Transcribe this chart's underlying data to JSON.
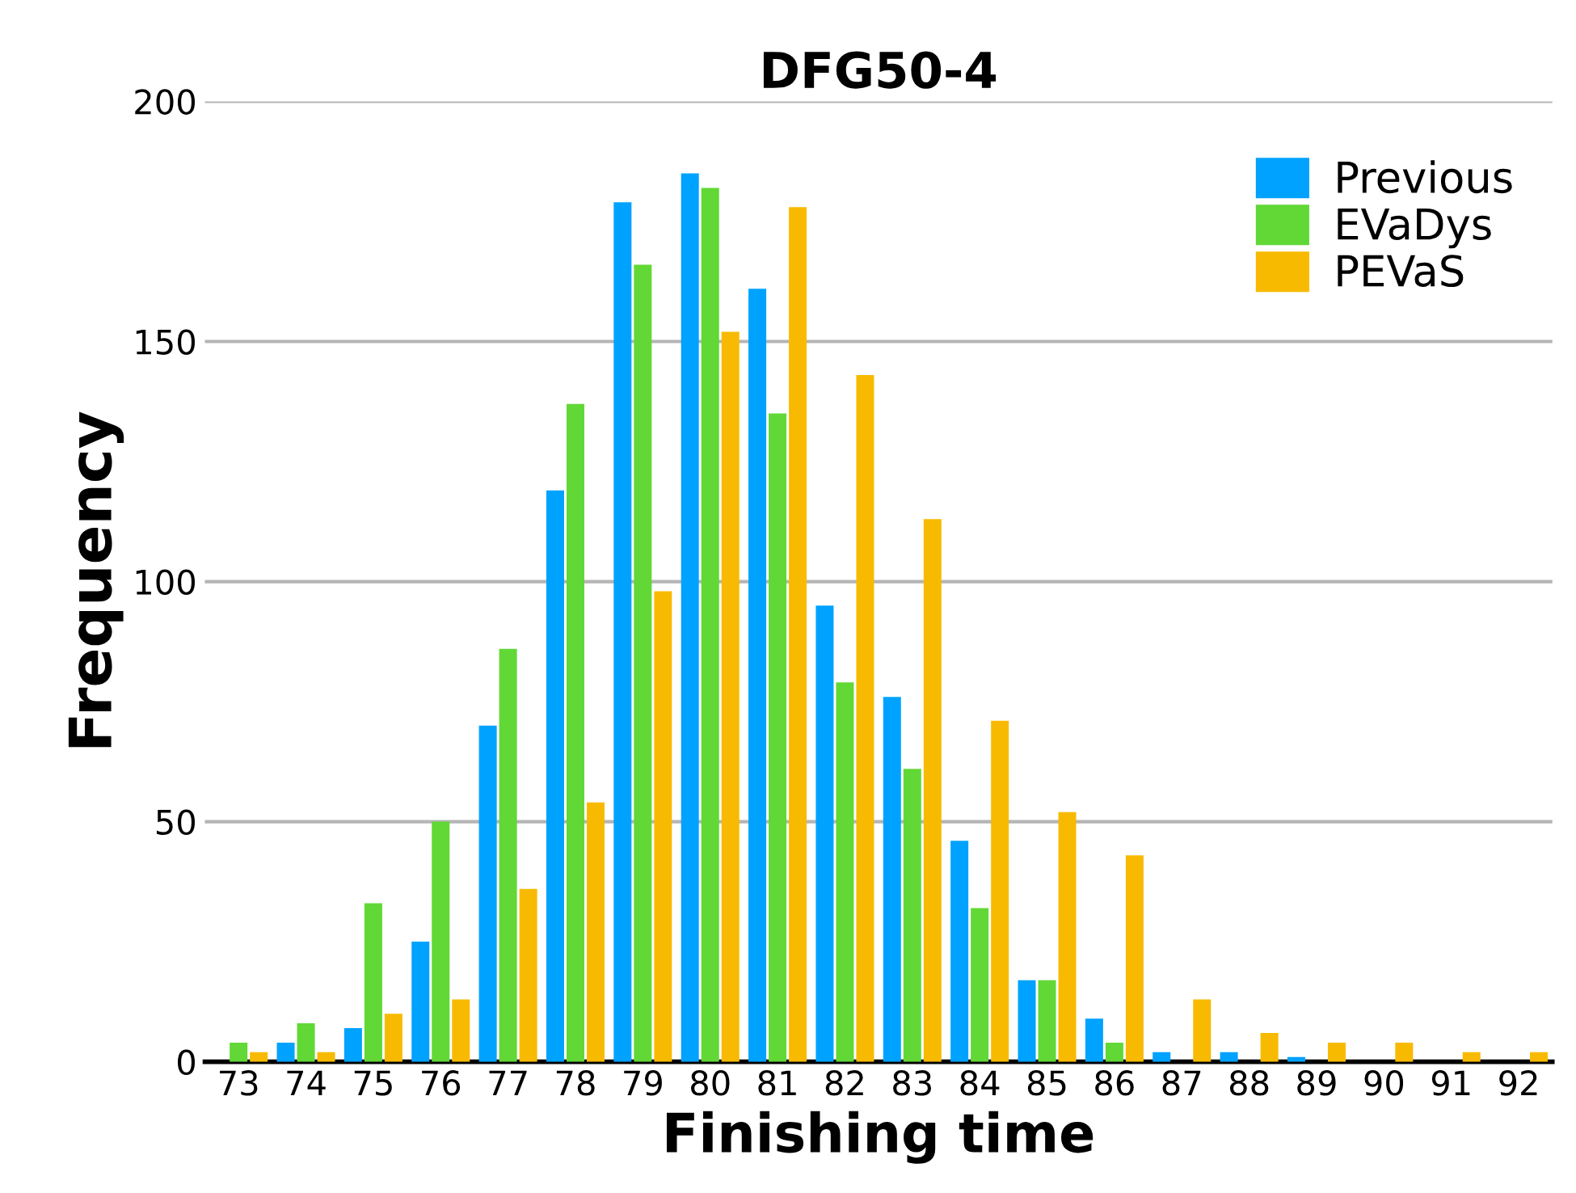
{
  "chart_data": {
    "type": "bar",
    "title": "DFG50-4",
    "xlabel": "Finishing time",
    "ylabel": "Frequency",
    "categories": [
      "73",
      "74",
      "75",
      "76",
      "77",
      "78",
      "79",
      "80",
      "81",
      "82",
      "83",
      "84",
      "85",
      "86",
      "87",
      "88",
      "89",
      "90",
      "91",
      "92"
    ],
    "series": [
      {
        "name": "Previous",
        "color": "#00a2ff",
        "values": [
          0,
          4,
          7,
          25,
          70,
          119,
          179,
          185,
          161,
          95,
          76,
          46,
          17,
          9,
          2,
          2,
          1,
          0,
          0,
          0
        ]
      },
      {
        "name": "EVaDys",
        "color": "#61d836",
        "values": [
          4,
          8,
          33,
          50,
          86,
          137,
          166,
          182,
          135,
          79,
          61,
          32,
          17,
          4,
          0,
          0,
          0,
          0,
          0,
          0
        ]
      },
      {
        "name": "PEVaS",
        "color": "#f8ba00",
        "values": [
          2,
          2,
          10,
          13,
          36,
          54,
          98,
          152,
          178,
          143,
          113,
          71,
          52,
          43,
          13,
          6,
          4,
          4,
          2,
          2
        ]
      }
    ],
    "ylim": [
      0,
      200
    ],
    "yticks": [
      0,
      50,
      100,
      150,
      200
    ],
    "grid": "y",
    "legend": "top right"
  }
}
